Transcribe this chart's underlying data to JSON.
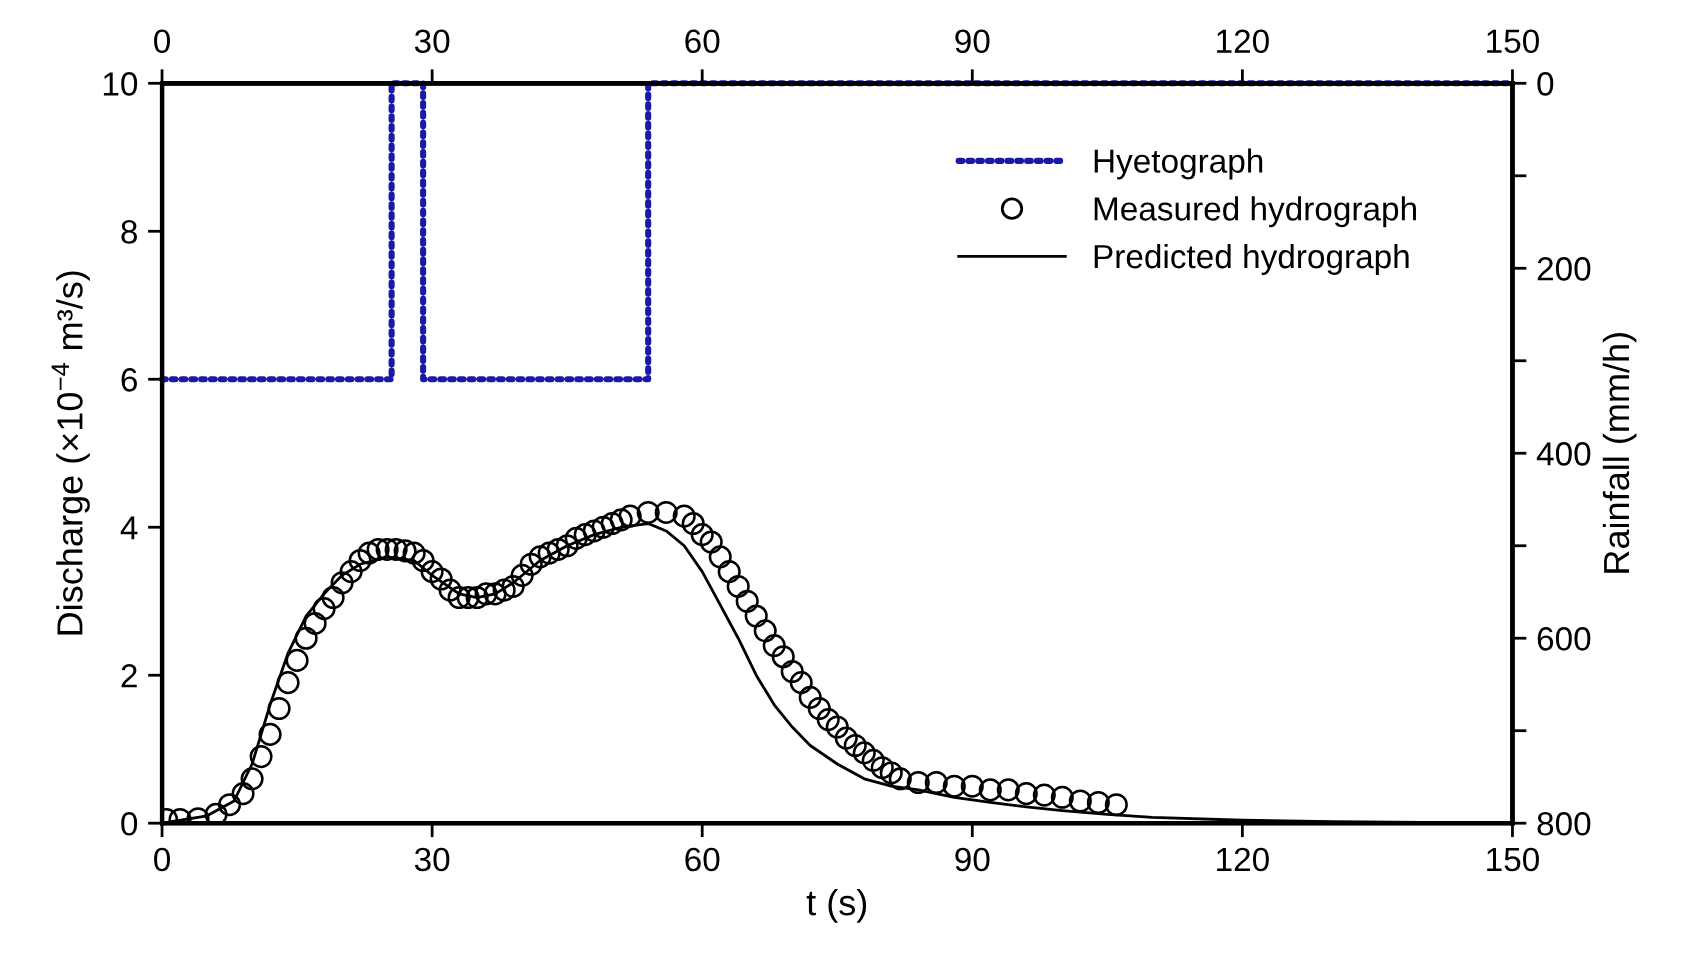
{
  "chart_data": {
    "type": "scatter",
    "xlabel": "t (s)",
    "ylabel": "Discharge (×10$^{−4}$ m³/s)",
    "y2label": "Rainfall (mm/h)",
    "xlim": [
      0,
      150
    ],
    "xticks": [
      0,
      30,
      60,
      90,
      120,
      150
    ],
    "x2lim": [
      0,
      150
    ],
    "x2ticks": [
      0,
      30,
      60,
      90,
      120,
      150
    ],
    "ylim": [
      0,
      10
    ],
    "yticks": [
      0,
      2,
      4,
      6,
      8,
      10
    ],
    "y2lim": [
      800,
      0
    ],
    "y2ticks": [
      0,
      {
        "value": 100,
        "label": null
      },
      200,
      {
        "value": 300,
        "label": null
      },
      400,
      {
        "value": 500,
        "label": null
      },
      600,
      {
        "value": 700,
        "label": null
      },
      800
    ],
    "grid": false,
    "legend": "top right",
    "series": [
      {
        "name": "Hyetograph",
        "type": "line",
        "axis": "y2",
        "color": "#1a1aa6",
        "line_style": "dotted",
        "x": [
          0,
          25.5,
          25.5,
          29,
          29,
          54,
          54,
          150
        ],
        "values": [
          320,
          320,
          0,
          0,
          320,
          320,
          0,
          0
        ]
      },
      {
        "name": "Measured hydrograph",
        "marker": "circle",
        "color": "#000000",
        "x": [
          0.5,
          2,
          4,
          6,
          7.5,
          9,
          10,
          11,
          12,
          13,
          14,
          15,
          16,
          17,
          18,
          19,
          20,
          21,
          22,
          23,
          24,
          25,
          26,
          27,
          28,
          29,
          30,
          31,
          32,
          33,
          34,
          35,
          36,
          37,
          38,
          39,
          40,
          41,
          42,
          43,
          44,
          45,
          46,
          47,
          48,
          49,
          50,
          51,
          52,
          54,
          56,
          58,
          59,
          60,
          61,
          62,
          63,
          64,
          65,
          66,
          67,
          68,
          69,
          70,
          71,
          72,
          73,
          74,
          75,
          76,
          77,
          78,
          79,
          80,
          81,
          82,
          84,
          86,
          88,
          90,
          92,
          94,
          96,
          98,
          100,
          102,
          104,
          106
        ],
        "values": [
          0.05,
          0.05,
          0.06,
          0.12,
          0.25,
          0.4,
          0.6,
          0.9,
          1.2,
          1.55,
          1.9,
          2.2,
          2.5,
          2.7,
          2.9,
          3.05,
          3.25,
          3.4,
          3.55,
          3.65,
          3.7,
          3.7,
          3.7,
          3.68,
          3.65,
          3.55,
          3.4,
          3.3,
          3.15,
          3.05,
          3.05,
          3.05,
          3.1,
          3.1,
          3.15,
          3.2,
          3.35,
          3.5,
          3.6,
          3.65,
          3.7,
          3.75,
          3.85,
          3.9,
          3.95,
          4.0,
          4.05,
          4.1,
          4.15,
          4.2,
          4.2,
          4.15,
          4.05,
          3.9,
          3.8,
          3.6,
          3.4,
          3.2,
          3.0,
          2.8,
          2.6,
          2.4,
          2.25,
          2.05,
          1.9,
          1.7,
          1.55,
          1.4,
          1.3,
          1.15,
          1.05,
          0.95,
          0.85,
          0.75,
          0.68,
          0.6,
          0.55,
          0.55,
          0.5,
          0.5,
          0.45,
          0.45,
          0.4,
          0.38,
          0.35,
          0.3,
          0.28,
          0.25
        ]
      },
      {
        "name": "Predicted hydrograph",
        "type": "line",
        "color": "#000000",
        "line_style": "solid",
        "x": [
          0,
          5,
          8,
          10,
          12,
          14,
          16,
          18,
          20,
          22,
          25,
          28,
          30,
          33,
          35,
          37,
          39,
          42,
          45,
          48,
          51,
          54,
          56,
          58,
          60,
          62,
          64,
          66,
          68,
          70,
          72,
          75,
          78,
          81,
          84,
          88,
          92,
          96,
          100,
          105,
          110,
          120,
          130,
          140,
          150
        ],
        "values": [
          0,
          0.1,
          0.3,
          0.8,
          1.6,
          2.3,
          2.8,
          3.1,
          3.35,
          3.5,
          3.6,
          3.55,
          3.35,
          3.1,
          3.05,
          3.1,
          3.25,
          3.55,
          3.75,
          3.9,
          4.0,
          4.05,
          3.95,
          3.75,
          3.4,
          2.95,
          2.5,
          2.0,
          1.6,
          1.3,
          1.05,
          0.8,
          0.6,
          0.5,
          0.45,
          0.35,
          0.28,
          0.22,
          0.17,
          0.12,
          0.08,
          0.04,
          0.02,
          0.01,
          0
        ]
      }
    ]
  }
}
